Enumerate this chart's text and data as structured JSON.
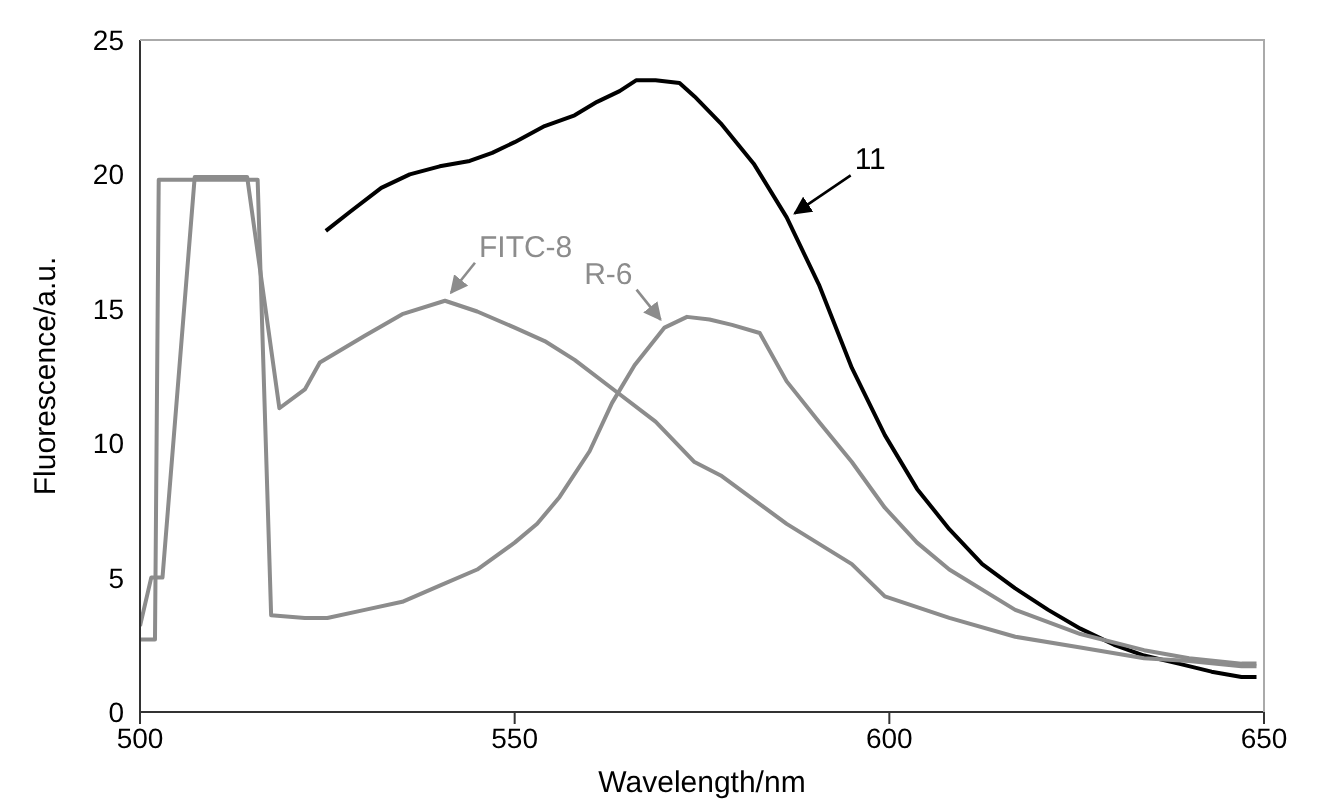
{
  "chart_data": {
    "type": "line",
    "xlabel": "Wavelength/nm",
    "ylabel": "Fluorescence/a.u.",
    "xlim": [
      500,
      650
    ],
    "ylim": [
      0,
      25
    ],
    "xticks": [
      500,
      550,
      600,
      650
    ],
    "yticks": [
      0,
      5,
      10,
      15,
      20,
      25
    ],
    "grid": false,
    "legend": false,
    "marker": "none",
    "line_style": "solid",
    "series": [
      {
        "name": "11",
        "color": "#000000",
        "x": [
          524.8,
          528,
          532.2,
          536,
          540,
          544,
          547,
          550,
          554,
          558,
          561,
          564,
          566.2,
          568.8,
          572,
          574,
          577.5,
          581.9,
          586.3,
          590.6,
          595,
          599.4,
          603.7,
          608,
          612.4,
          616.8,
          621.2,
          625.5,
          630,
          634,
          638.6,
          643,
          647,
          649
        ],
        "values": [
          17.9,
          18.6,
          19.5,
          20,
          20.3,
          20.5,
          20.8,
          21.2,
          21.8,
          22.2,
          22.7,
          23.1,
          23.5,
          23.5,
          23.4,
          22.9,
          21.9,
          20.4,
          18.4,
          15.9,
          12.8,
          10.3,
          8.3,
          6.8,
          5.5,
          4.6,
          3.8,
          3.1,
          2.5,
          2.1,
          1.8,
          1.5,
          1.3,
          1.3
        ]
      },
      {
        "name": "FITC-8",
        "color": "#8c8c8c",
        "x": [
          500,
          501.5,
          503,
          507.3,
          513,
          514.3,
          518.6,
          522,
          524,
          530,
          535,
          540.7,
          545,
          550,
          554,
          558,
          562.7,
          568.8,
          574,
          577.5,
          586.3,
          595,
          599.4,
          608,
          616.8,
          625.5,
          634,
          640,
          647,
          649
        ],
        "values": [
          3.2,
          5,
          5,
          19.9,
          19.9,
          19.9,
          11.3,
          12,
          13,
          14,
          14.8,
          15.3,
          14.9,
          14.3,
          13.8,
          13.1,
          12.1,
          10.8,
          9.3,
          8.8,
          7,
          5.5,
          4.3,
          3.5,
          2.8,
          2.4,
          2,
          1.9,
          1.7,
          1.7
        ]
      },
      {
        "name": "R-6",
        "color": "#8c8c8c",
        "x": [
          500,
          502,
          502.5,
          514,
          515.7,
          517.5,
          522,
          525,
          530,
          535,
          540,
          545,
          550,
          553,
          556,
          560,
          563,
          566,
          570,
          573,
          576,
          579,
          582.7,
          586.3,
          590.6,
          595,
          599.4,
          603.7,
          608,
          616.8,
          625.5,
          634,
          640,
          647,
          649
        ],
        "values": [
          2.7,
          2.7,
          19.8,
          19.8,
          19.8,
          3.6,
          3.5,
          3.5,
          3.8,
          4.1,
          4.7,
          5.3,
          6.3,
          7,
          8,
          9.7,
          11.5,
          12.9,
          14.3,
          14.7,
          14.6,
          14.4,
          14.1,
          12.3,
          10.8,
          9.3,
          7.6,
          6.3,
          5.3,
          3.8,
          2.9,
          2.3,
          2,
          1.8,
          1.8
        ]
      }
    ]
  }
}
